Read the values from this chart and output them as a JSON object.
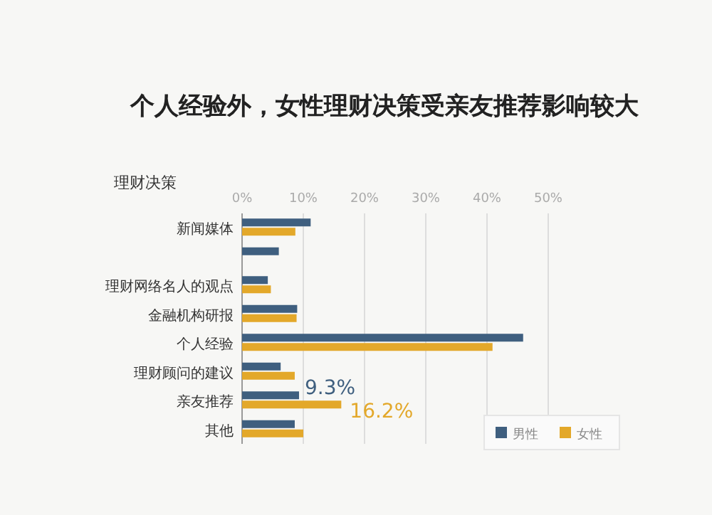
{
  "chart_data": {
    "type": "bar",
    "orientation": "horizontal",
    "title": "个人经验外，女性理财决策受亲友推荐影响较大",
    "ylabel": "理财决策",
    "categories": [
      "新闻媒体",
      null,
      "理财网络名人的观点",
      "金融机构研报",
      "个人经验",
      "理财顾问的建议",
      "亲友推荐",
      "其他"
    ],
    "series": [
      {
        "name": "男性",
        "color": "#3f5f7f",
        "values": [
          11.2,
          6.0,
          4.2,
          9.0,
          45.9,
          6.3,
          9.3,
          8.6
        ],
        "value_labels": [
          null,
          null,
          null,
          null,
          null,
          null,
          "9.3%",
          null
        ]
      },
      {
        "name": "女性",
        "color": "#e3a82a",
        "values": [
          8.7,
          null,
          4.7,
          8.9,
          40.9,
          8.6,
          16.2,
          10.0
        ],
        "value_labels": [
          null,
          null,
          null,
          null,
          null,
          null,
          "16.2%",
          null
        ]
      }
    ],
    "xlim": [
      0,
      50
    ],
    "xticks": [
      {
        "value": 0,
        "label": "0%"
      },
      {
        "value": 10,
        "label": "10%"
      },
      {
        "value": 20,
        "label": "20%"
      },
      {
        "value": 30,
        "label": "30%"
      },
      {
        "value": 40,
        "label": "40%"
      },
      {
        "value": 50,
        "label": "50%"
      }
    ],
    "grid": "x",
    "legend": "bottom right"
  }
}
